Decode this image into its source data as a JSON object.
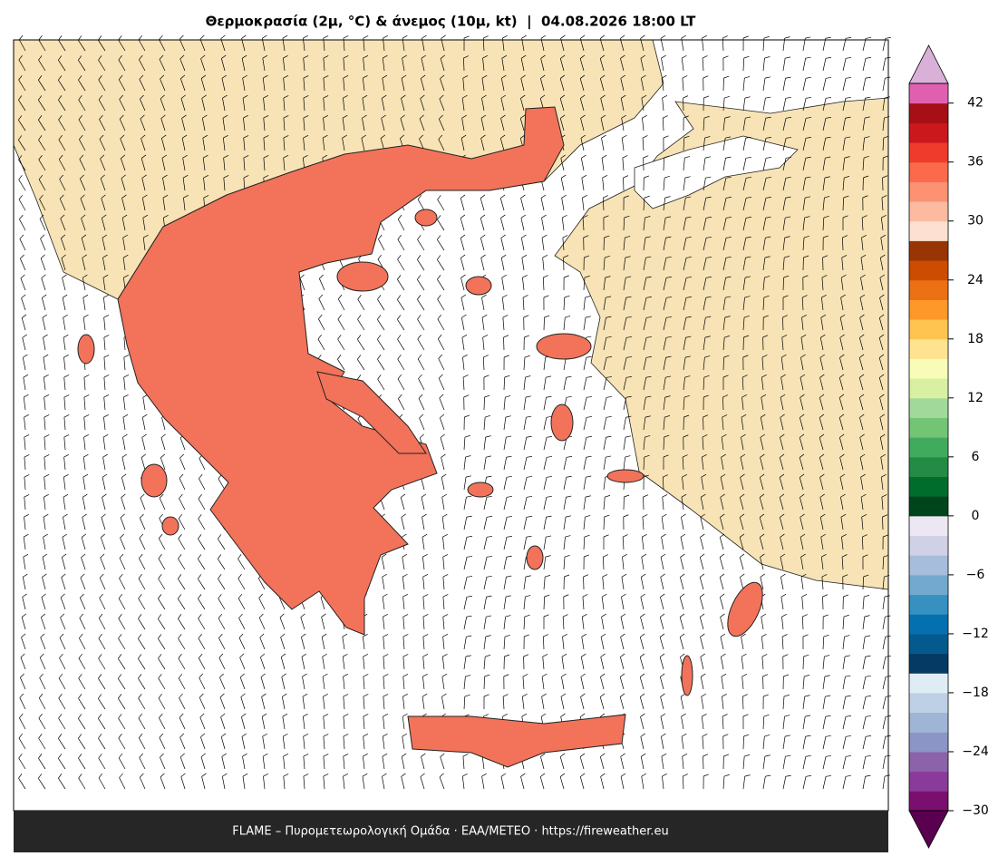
{
  "title": "Θερμοκρασία (2μ, °C) & άνεμος (10μ, kt)  |  04.08.2026 18:00 LT",
  "footer": "FLAME – Πυρομετεωρολογική Ομάδα · ΕΑΑ/METEO · https://fireweather.eu",
  "colorbar": {
    "lim": [
      -30,
      44
    ],
    "ticks": [
      {
        "value": -30,
        "label": "−30"
      },
      {
        "value": -24,
        "label": "−24"
      },
      {
        "value": -18,
        "label": "−18"
      },
      {
        "value": -12,
        "label": "−12"
      },
      {
        "value": -6,
        "label": "−6"
      },
      0,
      6,
      12,
      18,
      24,
      30,
      36,
      42
    ],
    "colors": [
      "#7a0f70",
      "#8a3a98",
      "#8c62aa",
      "#8c96c6",
      "#9fb5d6",
      "#bdd0e6",
      "#e0ecf4",
      "#043a63",
      "#045a8d",
      "#0570b0",
      "#3690c0",
      "#74a9cf",
      "#a6bddb",
      "#d0d1e6",
      "#ece7f2",
      "#00441b",
      "#006d2c",
      "#238b45",
      "#41ab5d",
      "#74c476",
      "#a1d99b",
      "#d9f0a3",
      "#f7fcb9",
      "#fee391",
      "#fec44f",
      "#fe9929",
      "#ec7014",
      "#cc4c02",
      "#993404",
      "#fee0d2",
      "#fcbba1",
      "#fc9272",
      "#fb6a4a",
      "#ef3b2c",
      "#cb181d",
      "#a50f15",
      "#e060b0"
    ],
    "under_color": "#5a0050",
    "over_color": "#d8b0d8"
  }
}
